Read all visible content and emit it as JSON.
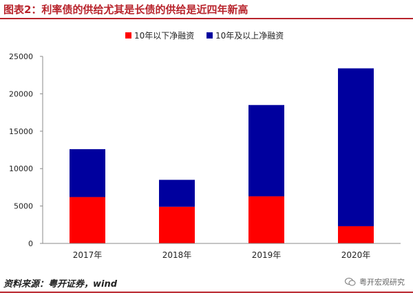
{
  "figure": {
    "title": "图表2：利率债的供给尤其是长债的供给是近四年新高",
    "source": "资料来源：粤开证券，wind",
    "watermark": "粤开宏观研究"
  },
  "chart_data": {
    "type": "bar",
    "stacked": true,
    "categories": [
      "2017年",
      "2018年",
      "2019年",
      "2020年"
    ],
    "series": [
      {
        "name": "10年以下净融资",
        "color": "#ff0000",
        "values": [
          6200,
          4900,
          6300,
          2300
        ]
      },
      {
        "name": "10年及以上净融资",
        "color": "#00009e",
        "values": [
          6400,
          3600,
          12200,
          21100
        ]
      }
    ],
    "ylim": [
      0,
      25000
    ],
    "yticks": [
      0,
      5000,
      10000,
      15000,
      20000,
      25000
    ],
    "legend_position": "top",
    "grid": false
  }
}
